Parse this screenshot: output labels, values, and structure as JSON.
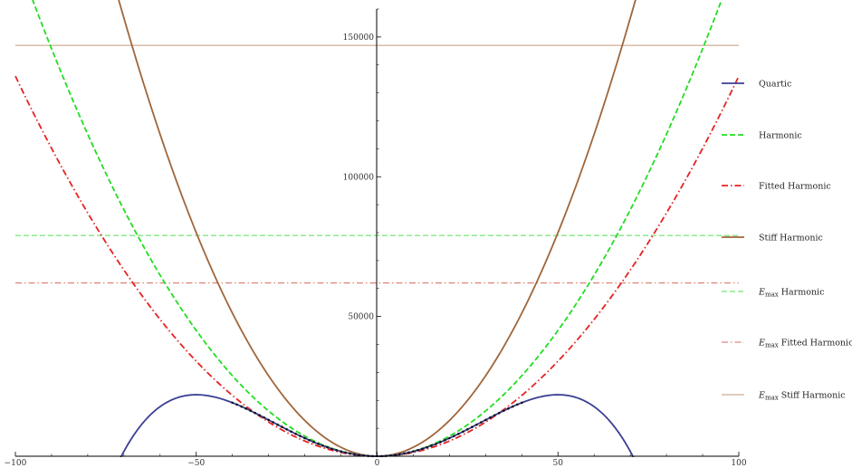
{
  "chart_data": {
    "type": "line",
    "title": "",
    "xlabel": "",
    "ylabel": "",
    "xlim": [
      -100,
      100
    ],
    "ylim": [
      0,
      160000
    ],
    "x_ticks": [
      -100,
      -50,
      0,
      50,
      100
    ],
    "x_tick_labels": [
      "−100",
      "−50",
      "0",
      "50",
      "100"
    ],
    "y_ticks": [
      50000,
      100000,
      150000
    ],
    "y_tick_labels": [
      "50000",
      "100000",
      "150000"
    ],
    "grid": false,
    "legend_position": "right",
    "series": [
      {
        "name": "Quartic",
        "color": "#3b3f94",
        "dash": "solid",
        "width": 1.8,
        "formula": "17.6*x^2 - 0.00352*x^4",
        "x_range": [
          -71,
          71
        ]
      },
      {
        "name": "Harmonic",
        "color": "#22dd22",
        "dash": "dashed",
        "width": 1.8,
        "formula": "18*x^2",
        "x_range": [
          -100,
          100
        ]
      },
      {
        "name": "Fitted Harmonic",
        "color": "#e52222",
        "dash": "dashdot",
        "width": 1.8,
        "formula": "13.6*x^2",
        "x_range": [
          -100,
          100
        ]
      },
      {
        "name": "Stiff Harmonic",
        "color": "#a0663a",
        "dash": "solid",
        "width": 1.8,
        "formula": "32*x^2",
        "x_range": [
          -100,
          100
        ]
      },
      {
        "name": "Harmonic",
        "name_prefix": "E",
        "name_sub": "max",
        "color": "#55dd55",
        "dash": "dashed",
        "width": 1,
        "value": 79000
      },
      {
        "name": "Fitted Harmonic",
        "name_prefix": "E",
        "name_sub": "max",
        "color": "#d96a5c",
        "dash": "dashdot",
        "width": 1,
        "value": 62000
      },
      {
        "name": "Stiff Harmonic",
        "name_prefix": "E",
        "name_sub": "max",
        "color": "#c39a7a",
        "dash": "solid",
        "width": 1,
        "value": 147000
      }
    ],
    "data_points": {
      "color": "#111111",
      "formula": "17.6*x^2 - 0.00352*x^4",
      "x_range": [
        -40,
        40
      ],
      "step": 1.25
    }
  }
}
